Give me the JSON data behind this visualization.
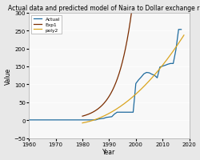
{
  "title": "Actual data and predicted model of Naira to Dollar exchange rate",
  "xlabel": "Year",
  "ylabel": "Value",
  "xlim": [
    1960,
    2020
  ],
  "ylim": [
    -50,
    300
  ],
  "xticks": [
    1960,
    1970,
    1980,
    1990,
    2000,
    2010,
    2020
  ],
  "yticks": [
    -50,
    0,
    50,
    100,
    150,
    200,
    250,
    300
  ],
  "actual_x": [
    1960,
    1961,
    1962,
    1963,
    1964,
    1965,
    1966,
    1967,
    1968,
    1969,
    1970,
    1971,
    1972,
    1973,
    1974,
    1975,
    1976,
    1977,
    1978,
    1979,
    1980,
    1981,
    1982,
    1983,
    1984,
    1985,
    1986,
    1987,
    1988,
    1989,
    1990,
    1991,
    1992,
    1993,
    1994,
    1995,
    1996,
    1997,
    1998,
    1999,
    2000,
    2001,
    2002,
    2003,
    2004,
    2005,
    2006,
    2007,
    2008,
    2009,
    2010,
    2011,
    2012,
    2013,
    2014,
    2015,
    2016,
    2017
  ],
  "actual_y": [
    0.5,
    0.5,
    0.5,
    0.5,
    0.5,
    0.5,
    0.5,
    0.5,
    0.5,
    0.5,
    0.5,
    0.5,
    0.5,
    0.5,
    0.5,
    0.5,
    0.5,
    0.5,
    0.5,
    0.5,
    0.5,
    0.5,
    0.5,
    0.5,
    0.5,
    0.5,
    3.0,
    4.0,
    5.0,
    7.5,
    8.5,
    9.5,
    17.0,
    22.0,
    22.0,
    22.0,
    22.0,
    22.0,
    22.0,
    22.0,
    102.0,
    112.0,
    120.0,
    129.0,
    133.0,
    132.0,
    128.0,
    125.0,
    118.0,
    148.0,
    150.5,
    153.0,
    156.0,
    158.0,
    158.0,
    196.0,
    253.0,
    253.0
  ],
  "actual_color": "#1f6b9e",
  "exp1_color": "#7B2D00",
  "poly2_color": "#DAA520",
  "legend_labels": [
    "Actual",
    "Exp1",
    "poly2"
  ],
  "background_color": "#e8e8e8",
  "plot_bg_color": "#f8f8f8",
  "title_fontsize": 5.5,
  "label_fontsize": 5.5,
  "tick_fontsize": 5
}
